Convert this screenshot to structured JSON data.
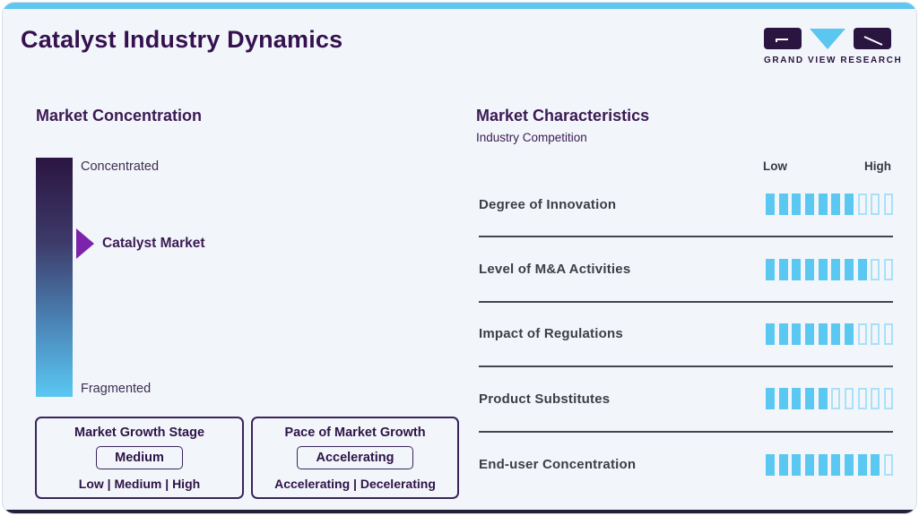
{
  "header": {
    "title": "Catalyst Industry Dynamics"
  },
  "logo": {
    "brand": "GRAND VIEW RESEARCH"
  },
  "colors": {
    "accent_blue": "#5bc8f2",
    "dark_purple": "#35124f",
    "arrow_purple": "#7d23ab",
    "charcoal": "#3d3d47",
    "card_bg": "#f2f6fa",
    "gradient_top": "#2b1541",
    "gradient_bottom": "#5ac8f2"
  },
  "market_concentration": {
    "title": "Market Concentration",
    "scale_top_label": "Concentrated",
    "scale_bottom_label": "Fragmented",
    "marker_label": "Catalyst Market",
    "growth_stage": {
      "title": "Market Growth Stage",
      "value": "Medium",
      "options": "Low | Medium | High"
    },
    "growth_pace": {
      "title": "Pace of Market Growth",
      "value": "Accelerating",
      "options": "Accelerating | Decelerating"
    }
  },
  "market_characteristics": {
    "title": "Market Characteristics",
    "subtitle": "Industry Competition",
    "scale_low_label": "Low",
    "scale_high_label": "High",
    "rows": [
      {
        "label": "Degree of Innovation",
        "filled": 7,
        "total": 10
      },
      {
        "label": "Level of M&A Activities",
        "filled": 8,
        "total": 10
      },
      {
        "label": "Impact of Regulations",
        "filled": 7,
        "total": 10
      },
      {
        "label": "Product Substitutes",
        "filled": 5,
        "total": 10
      },
      {
        "label": "End-user Concentration",
        "filled": 9,
        "total": 10
      }
    ]
  },
  "chart_data": {
    "type": "bar",
    "title": "Market Characteristics",
    "subtitle": "Industry Competition",
    "categories": [
      "Degree of Innovation",
      "Level of M&A Activities",
      "Impact of Regulations",
      "Product Substitutes",
      "End-user Concentration"
    ],
    "values": [
      7,
      8,
      7,
      5,
      9
    ],
    "xlabel": "",
    "ylabel": "",
    "scale": {
      "segments_total": 10,
      "min_label": "Low",
      "max_label": "High"
    },
    "concentration_scale": {
      "top": "Concentrated",
      "bottom": "Fragmented",
      "marker": "Catalyst Market",
      "marker_position": "upper-middle"
    }
  }
}
